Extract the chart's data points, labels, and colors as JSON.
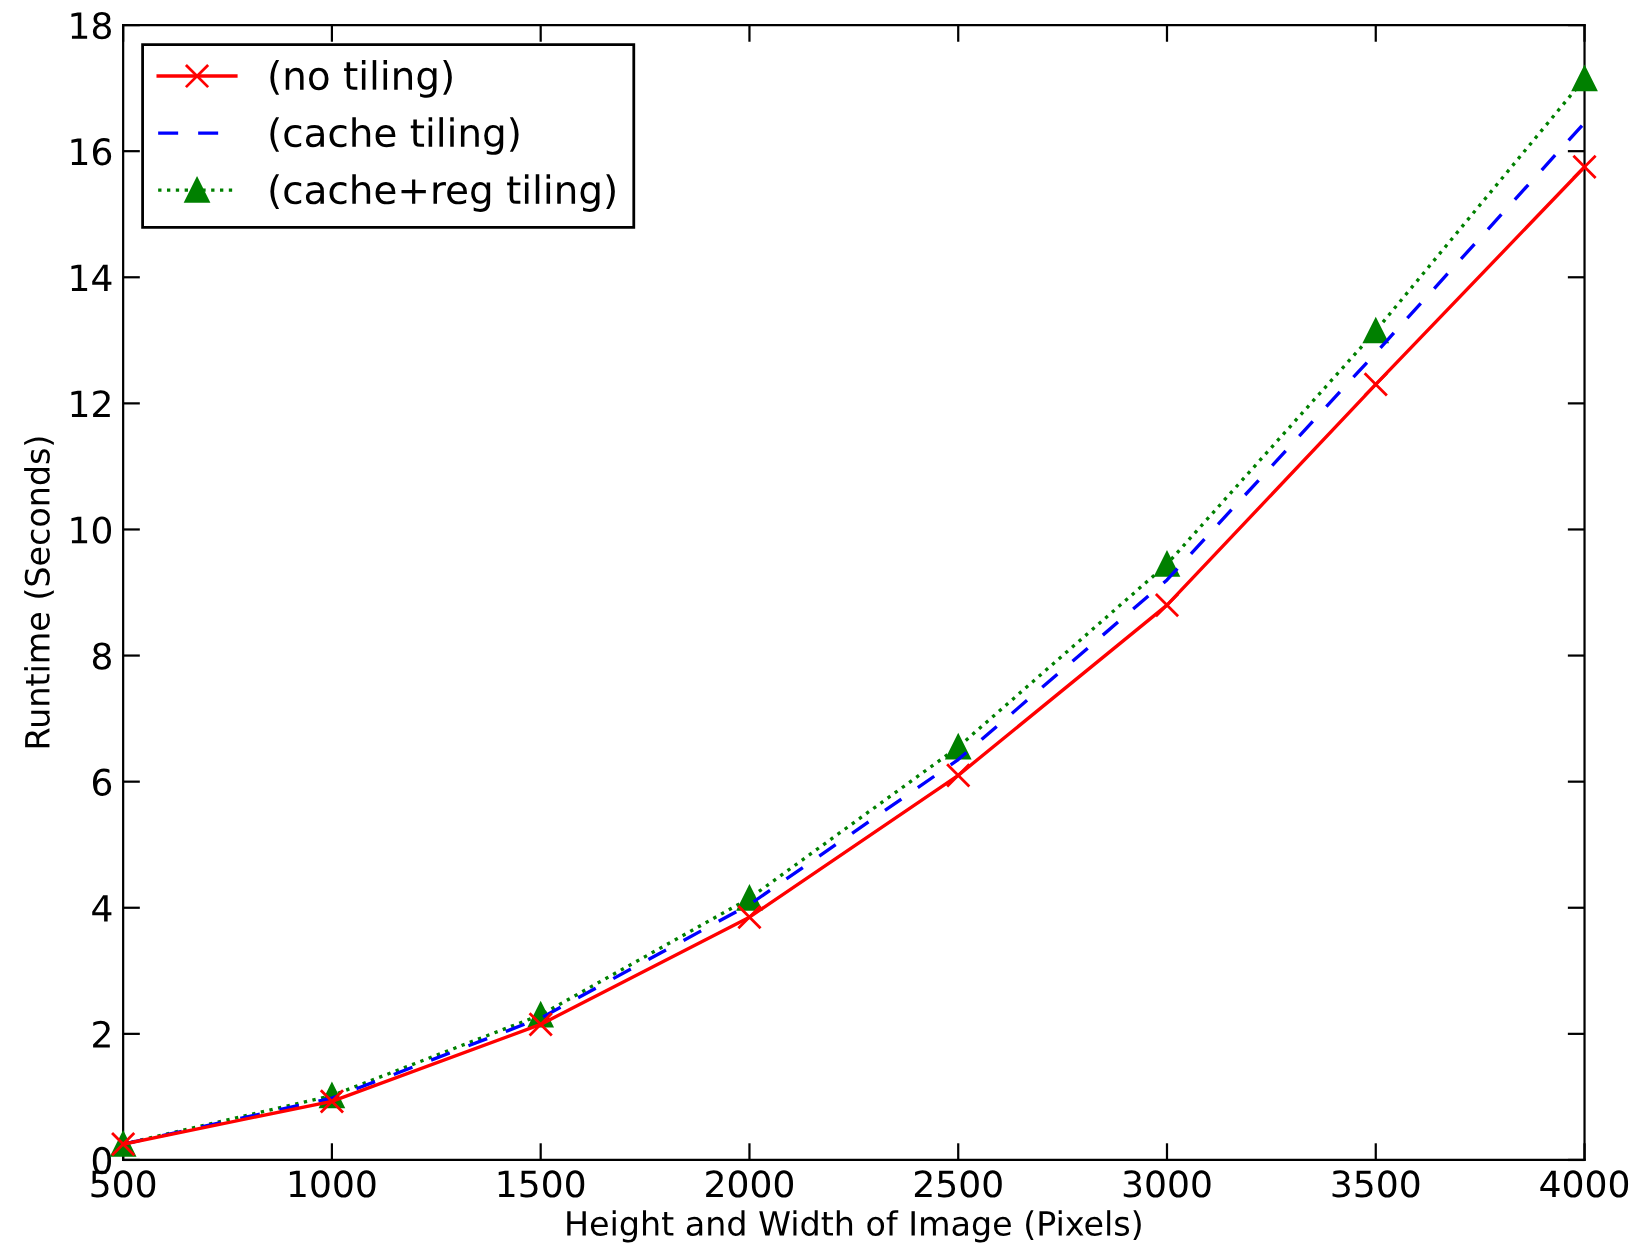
{
  "chart_data": {
    "type": "line",
    "xlabel": "Height and Width of Image (Pixels)",
    "ylabel": "Runtime (Seconds)",
    "x": [
      500,
      1000,
      1500,
      2000,
      2500,
      3000,
      3500,
      4000
    ],
    "series": [
      {
        "name": "(no tiling)",
        "color": "#ff0000",
        "marker": "cross",
        "line_style": "solid",
        "values": [
          0.25,
          0.93,
          2.15,
          3.85,
          6.1,
          8.8,
          12.3,
          15.75
        ]
      },
      {
        "name": "(cache tiling)",
        "color": "#0000ff",
        "marker": "none",
        "line_style": "dashed",
        "values": [
          0.25,
          0.98,
          2.25,
          4.05,
          6.35,
          9.2,
          12.8,
          16.45
        ]
      },
      {
        "name": "(cache+reg tiling)",
        "color": "#008000",
        "marker": "triangle",
        "line_style": "dotted",
        "values": [
          0.25,
          1.02,
          2.3,
          4.15,
          6.55,
          9.45,
          13.15,
          17.15
        ]
      }
    ],
    "xlim": [
      500,
      4000
    ],
    "xticks": [
      500,
      1000,
      1500,
      2000,
      2500,
      3000,
      3500,
      4000
    ],
    "ylim": [
      0,
      18
    ],
    "yticks": [
      0,
      2,
      4,
      6,
      8,
      10,
      12,
      14,
      16,
      18
    ],
    "grid": false,
    "legend": "top left"
  }
}
